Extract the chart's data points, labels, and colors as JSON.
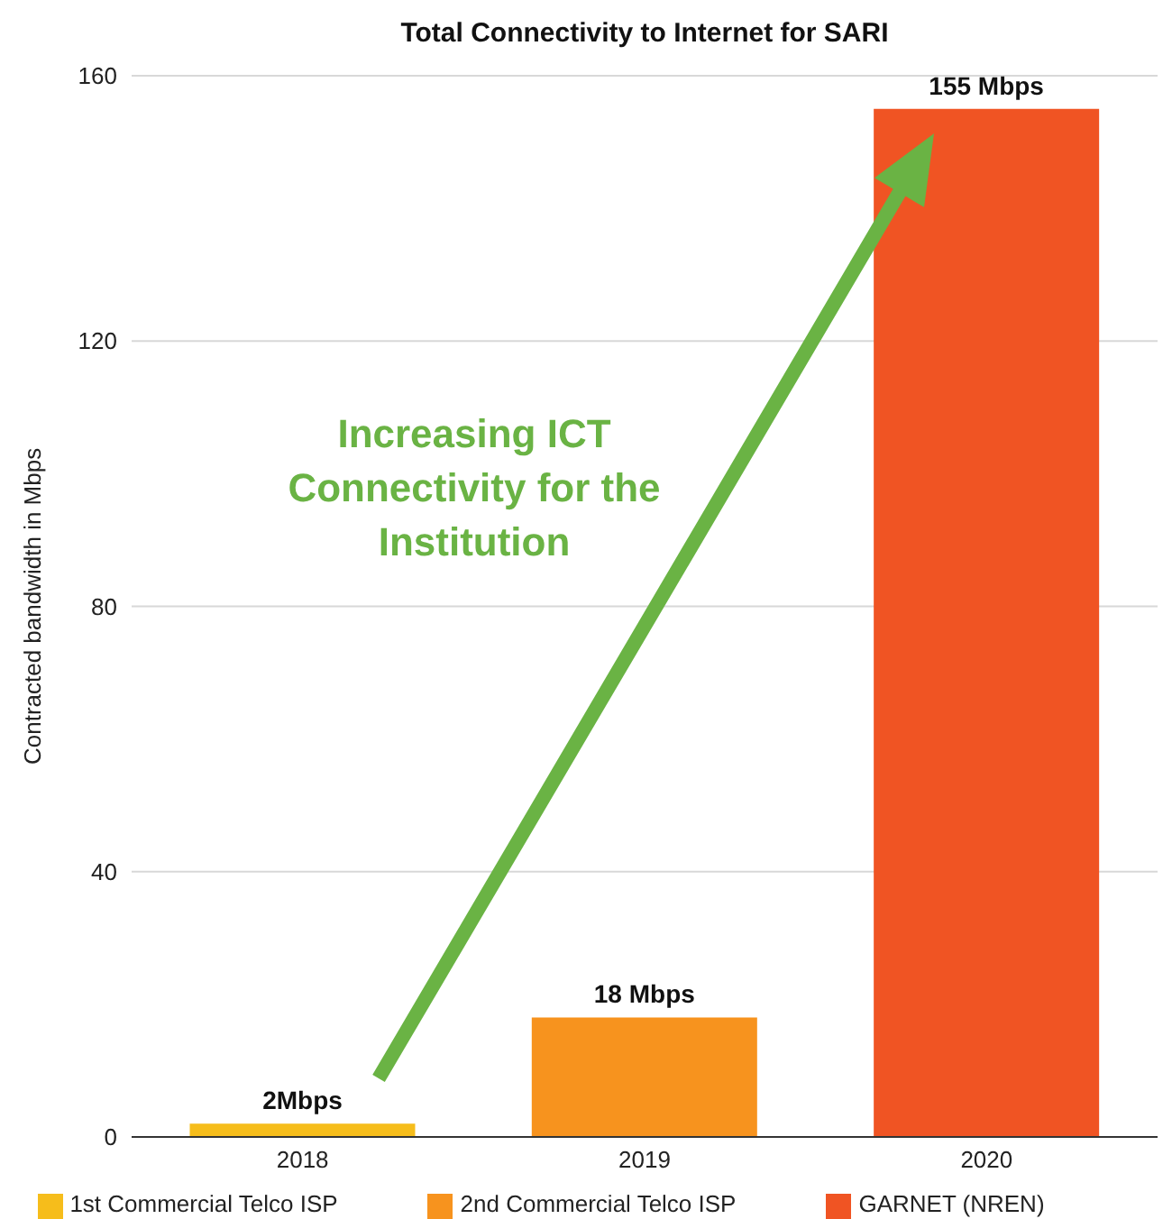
{
  "chart_data": {
    "type": "bar",
    "title": "Total Connectivity to Internet for SARI",
    "ylabel": "Contracted bandwidth in Mbps",
    "categories": [
      "2018",
      "2019",
      "2020"
    ],
    "stacked": true,
    "series": [
      {
        "name": "1st Commercial Telco ISP",
        "color": "#f6bd1b",
        "values": [
          2,
          null,
          null
        ],
        "value_labels": [
          "2Mbps",
          null,
          null
        ]
      },
      {
        "name": "2nd Commercial Telco ISP",
        "color": "#f7931e",
        "values": [
          null,
          18,
          null
        ],
        "value_labels": [
          null,
          "18 Mbps",
          null
        ]
      },
      {
        "name": "GARNET (NREN)",
        "color": "#f05423",
        "values": [
          null,
          null,
          155
        ],
        "value_labels": [
          null,
          null,
          "155 Mbps"
        ]
      }
    ],
    "ylim": [
      0,
      160
    ],
    "yticks": [
      0,
      40,
      80,
      120,
      160
    ],
    "grid": "y",
    "legend": "bottom",
    "annotations": [
      "Increasing ICT Connectivity for the Institution"
    ]
  }
}
